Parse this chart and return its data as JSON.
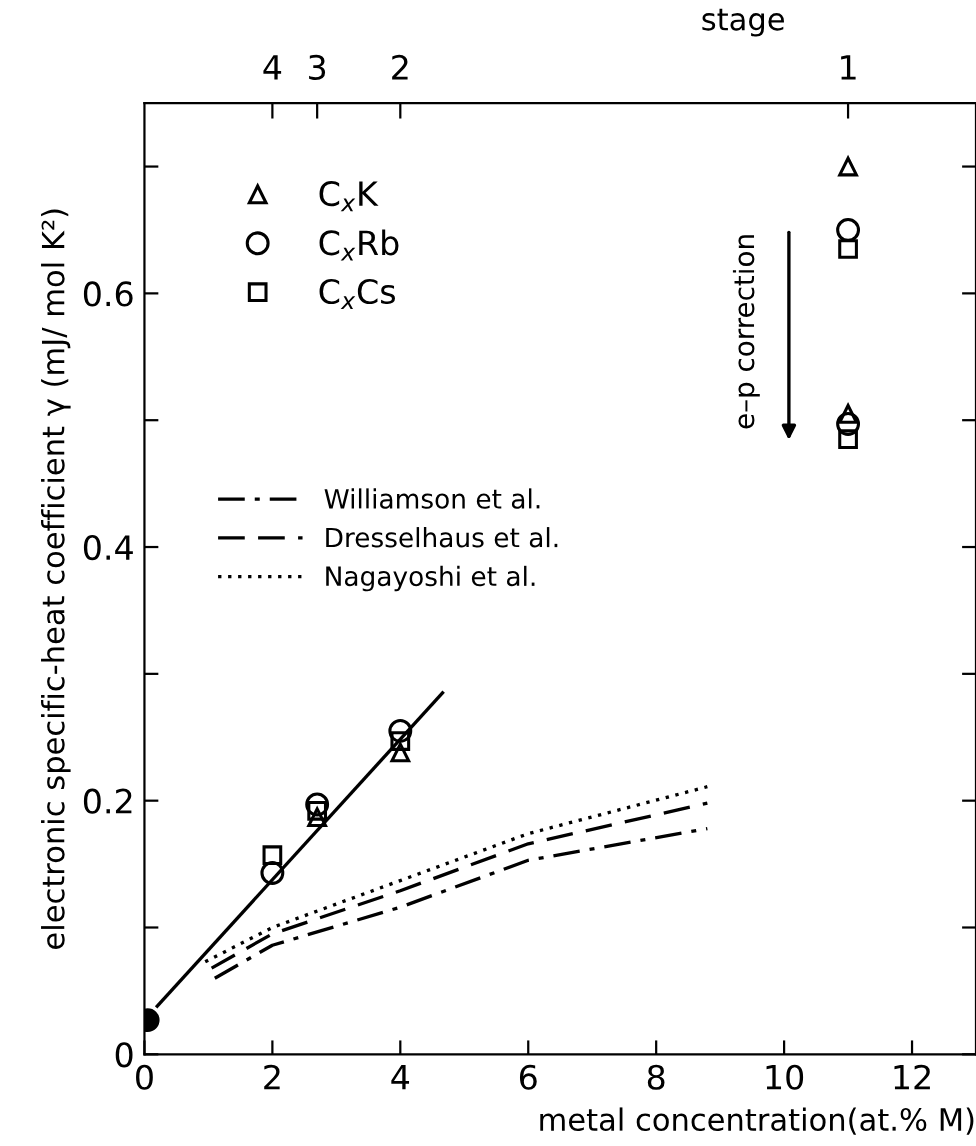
{
  "chart_data": {
    "type": "scatter",
    "xlabel": "metal concentration(at.% M)",
    "ylabel": "electronic specific-heat coefficient γ (mJ/ mol K²)",
    "x2label": "stage",
    "xlim": [
      0,
      13
    ],
    "xticks": [
      0,
      2,
      4,
      6,
      8,
      10,
      12
    ],
    "ylim": [
      0,
      0.75
    ],
    "yticks": [
      0,
      {
        "value": 0.1,
        "label": null
      },
      0.2,
      {
        "value": 0.3,
        "label": null
      },
      0.4,
      {
        "value": 0.5,
        "label": null
      },
      0.6,
      {
        "value": 0.7,
        "label": null
      }
    ],
    "legend": "top left",
    "grid": false,
    "annotations": [
      "e–p correction",
      "4",
      "3",
      "2",
      "1"
    ],
    "series": [
      {
        "name": "C$_{x}$K",
        "marker": "triangle",
        "color": "#000000",
        "x": [
          2.7,
          4.0,
          11.0,
          11.0
        ],
        "values": [
          0.187,
          0.238,
          0.7,
          0.505
        ]
      },
      {
        "name": "C$_{x}$Rb",
        "marker": "circle",
        "color": "#000000",
        "x": [
          2.0,
          2.7,
          4.0,
          11.0,
          11.0
        ],
        "values": [
          0.143,
          0.197,
          0.255,
          0.65,
          0.497
        ]
      },
      {
        "name": "C$_{x}$Cs",
        "marker": "square",
        "color": "#000000",
        "x": [
          2.0,
          2.7,
          4.0,
          11.0,
          11.0
        ],
        "values": [
          0.157,
          0.192,
          0.247,
          0.635,
          0.485
        ]
      },
      {
        "marker": "filled circle",
        "color": "#000000",
        "x": [
          0.05
        ],
        "values": [
          0.027
        ]
      },
      {
        "type": "line",
        "line_style": "solid",
        "color": "#000000",
        "x": [
          0.2,
          4.66
        ],
        "values": [
          0.038,
          0.285
        ]
      },
      {
        "name": "Williamson et al.",
        "type": "line",
        "line_style": "dashdot",
        "color": "#000000",
        "x": [
          1.1,
          2,
          4,
          6,
          8.8
        ],
        "values": [
          0.06,
          0.086,
          0.116,
          0.153,
          0.178
        ]
      },
      {
        "name": "Dresselhaus et al.",
        "type": "line",
        "line_style": "dashed",
        "color": "#000000",
        "x": [
          1.05,
          2,
          4,
          6,
          8.8
        ],
        "values": [
          0.068,
          0.095,
          0.129,
          0.166,
          0.198
        ]
      },
      {
        "name": "Nagayoshi et al.",
        "type": "line",
        "line_style": "dotted",
        "color": "#000000",
        "x": [
          0.95,
          2,
          4,
          6,
          8.8
        ],
        "values": [
          0.073,
          0.1,
          0.137,
          0.174,
          0.211
        ]
      }
    ]
  }
}
